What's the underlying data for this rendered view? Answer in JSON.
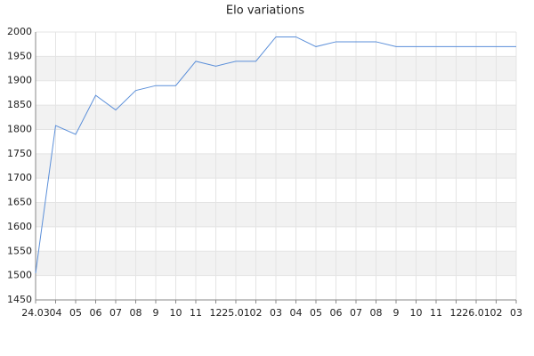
{
  "chart_data": {
    "type": "line",
    "title": "Elo variations",
    "categories": [
      "24.03",
      "04",
      "05",
      "06",
      "07",
      "08",
      "9",
      "10",
      "11",
      "12",
      "25.01",
      "02",
      "03",
      "04",
      "05",
      "06",
      "07",
      "08",
      "9",
      "10",
      "11",
      "12",
      "26.01",
      "02",
      "03"
    ],
    "series": [
      {
        "name": "Elo",
        "color": "#5b8fd9",
        "values": [
          1505,
          1808,
          1790,
          1870,
          1840,
          1880,
          1890,
          1890,
          1940,
          1930,
          1940,
          1940,
          1990,
          1990,
          1970,
          1980,
          1980,
          1980,
          1970,
          1970,
          1970,
          1970,
          1970,
          1970,
          1970
        ]
      }
    ],
    "ylim": [
      1450,
      2000
    ],
    "yticks": [
      1450,
      1500,
      1550,
      1600,
      1650,
      1700,
      1750,
      1800,
      1850,
      1900,
      1950,
      2000
    ],
    "grid": true
  }
}
